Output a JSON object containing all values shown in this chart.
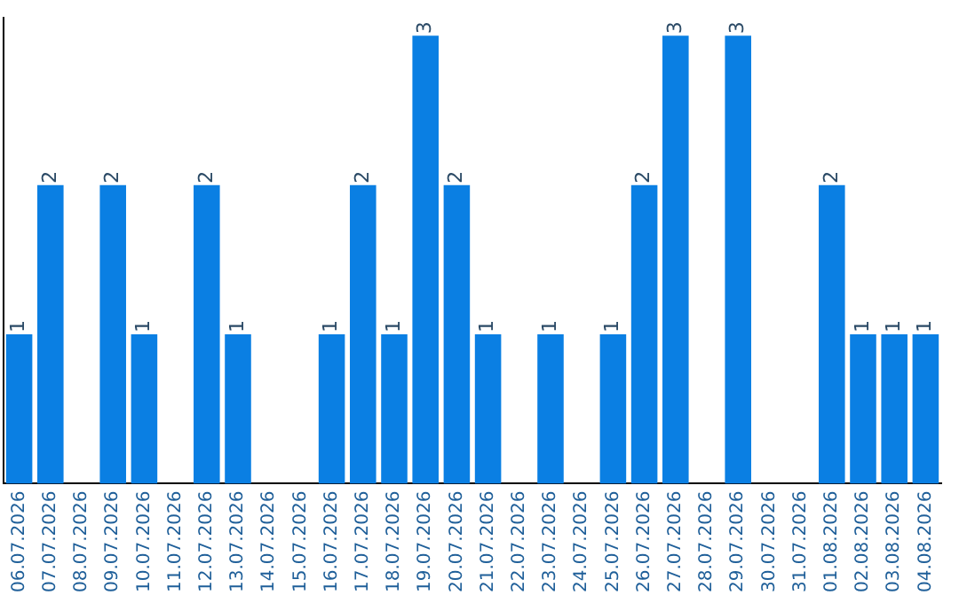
{
  "chart_data": {
    "type": "bar",
    "categories": [
      "06.07.2026",
      "07.07.2026",
      "08.07.2026",
      "09.07.2026",
      "10.07.2026",
      "11.07.2026",
      "12.07.2026",
      "13.07.2026",
      "14.07.2026",
      "15.07.2026",
      "16.07.2026",
      "17.07.2026",
      "18.07.2026",
      "19.07.2026",
      "20.07.2026",
      "21.07.2026",
      "22.07.2026",
      "23.07.2026",
      "24.07.2026",
      "25.07.2026",
      "26.07.2026",
      "27.07.2026",
      "28.07.2026",
      "29.07.2026",
      "30.07.2026",
      "31.07.2026",
      "01.08.2026",
      "02.08.2026",
      "03.08.2026",
      "04.08.2026"
    ],
    "values": [
      1,
      2,
      0,
      2,
      1,
      0,
      2,
      1,
      0,
      0,
      1,
      2,
      1,
      3,
      2,
      1,
      0,
      1,
      0,
      1,
      2,
      3,
      0,
      3,
      0,
      0,
      2,
      1,
      1,
      1
    ],
    "value_labels": [
      "1",
      "2",
      null,
      "2",
      "1",
      null,
      "2",
      "1",
      null,
      null,
      "1",
      "2",
      "1",
      "3",
      "2",
      "1",
      null,
      "1",
      null,
      "1",
      "2",
      "3",
      null,
      "3",
      null,
      null,
      "2",
      "1",
      "1",
      "1"
    ],
    "color": "#0a7fe3",
    "ylim": [
      0,
      3.12
    ],
    "tick_labels": "x",
    "grid": false,
    "legend": false
  }
}
